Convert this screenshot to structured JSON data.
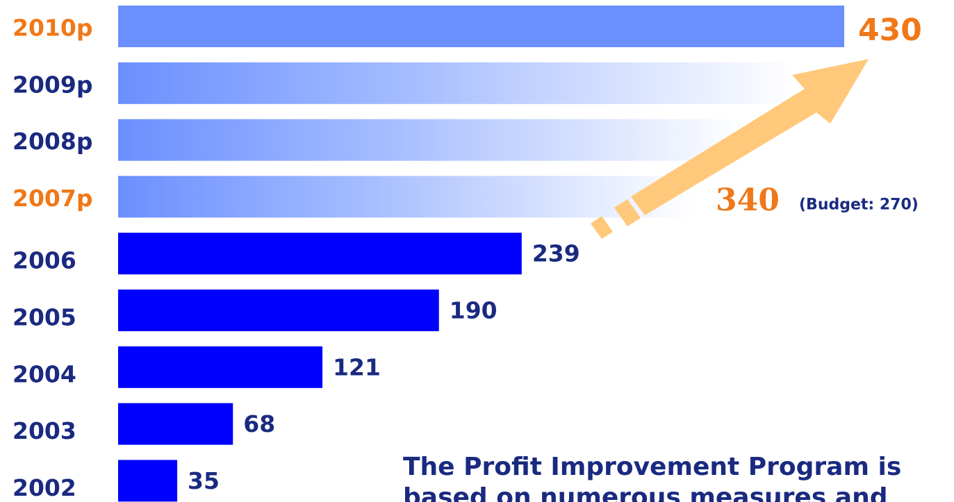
{
  "chart_data": {
    "type": "bar",
    "orientation": "horizontal",
    "categories": [
      "2010p",
      "2009p",
      "2008p",
      "2007p",
      "2006",
      "2005",
      "2004",
      "2003",
      "2002"
    ],
    "values": [
      430,
      400,
      370,
      340,
      239,
      190,
      121,
      68,
      35
    ],
    "value_labels": [
      "430",
      null,
      null,
      "340",
      "239",
      "190",
      "121",
      "68",
      "35"
    ],
    "category_colors": [
      "#f07818",
      "#1a2a80",
      "#1a2a80",
      "#f07818",
      "#1a2a80",
      "#1a2a80",
      "#1a2a80",
      "#1a2a80",
      "#1a2a80"
    ],
    "bar_colors": [
      "#6a8fff",
      "#6a8fff",
      "#6a8fff",
      "#6a8fff",
      "#0000ff",
      "#0000ff",
      "#0000ff",
      "#0000ff",
      "#0000ff"
    ],
    "gradient": [
      false,
      true,
      true,
      true,
      false,
      false,
      false,
      false,
      false
    ],
    "label_colors": [
      "#f07818",
      "#1a2a80",
      "#1a2a80",
      "#f07818",
      "#1a2a80",
      "#1a2a80",
      "#1a2a80",
      "#1a2a80",
      "#1a2a80"
    ],
    "xlim": [
      0,
      430
    ],
    "budget_note": "(Budget: 270)",
    "text_lines": [
      "The Profit Improvement Program is",
      "based on numerous measures and"
    ]
  }
}
